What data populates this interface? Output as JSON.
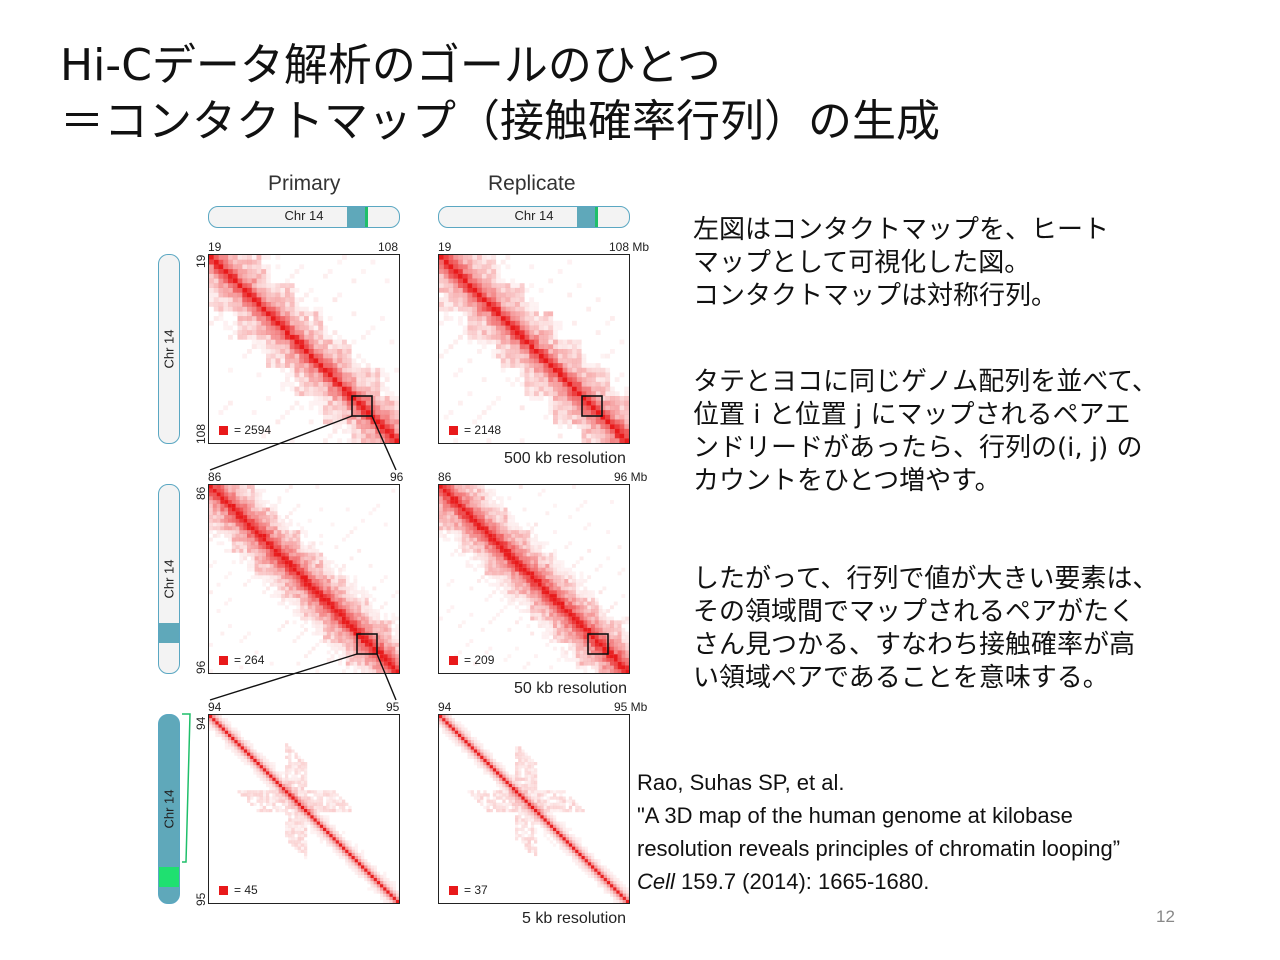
{
  "slide": {
    "title_line1": "Hi-Cデータ解析のゴールのひとつ",
    "title_line2": "＝コンタクトマップ（接触確率行列）の生成",
    "page_number": "12"
  },
  "figure": {
    "primary_title": "Primary",
    "replicate_title": "Replicate",
    "chr_label": "Chr 14",
    "accent_color": "#e8191a",
    "rows": [
      {
        "x_start": "19",
        "x_end": "108",
        "x_end_unit": "108 Mb",
        "y_start": "19",
        "y_end": "108",
        "primary_count": "= 2594",
        "replicate_count": "= 2148",
        "resolution": "500 kb resolution"
      },
      {
        "x_start": "86",
        "x_end": "96",
        "x_end_unit": "96 Mb",
        "y_start": "86",
        "y_end": "96",
        "primary_count": "= 264",
        "replicate_count": "= 209",
        "resolution": "50 kb resolution"
      },
      {
        "x_start": "94",
        "x_end": "95",
        "x_end_unit": "95 Mb",
        "y_start": "94",
        "y_end": "95",
        "primary_count": "= 45",
        "replicate_count": "= 37",
        "resolution": "5 kb resolution"
      }
    ],
    "zoom_labels": [
      "86",
      "96",
      "94",
      "95"
    ]
  },
  "text": {
    "para1": [
      "左図はコンタクトマップを、ヒート",
      "マップとして可視化した図。",
      "コンタクトマップは対称行列。"
    ],
    "para2": [
      "タテとヨコに同じゲノム配列を並べて、",
      "位置 i と位置 j にマップされるペアエ",
      "ンドリードがあったら、行列の(i, j) の",
      "カウントをひとつ増やす。"
    ],
    "para3": [
      "したがって、行列で値が大きい要素は、",
      "その領域間でマップされるペアがたく",
      "さん見つかる、すなわち接触確率が高",
      "い領域ペアであることを意味する。"
    ]
  },
  "citation": {
    "authors": "Rao, Suhas SP, et al.",
    "title_line1": "\"A 3D map of the human genome at kilobase",
    "title_line2": "resolution reveals principles of chromatin looping”",
    "journal": "Cell",
    "details": " 159.7 (2014): 1665-1680."
  }
}
